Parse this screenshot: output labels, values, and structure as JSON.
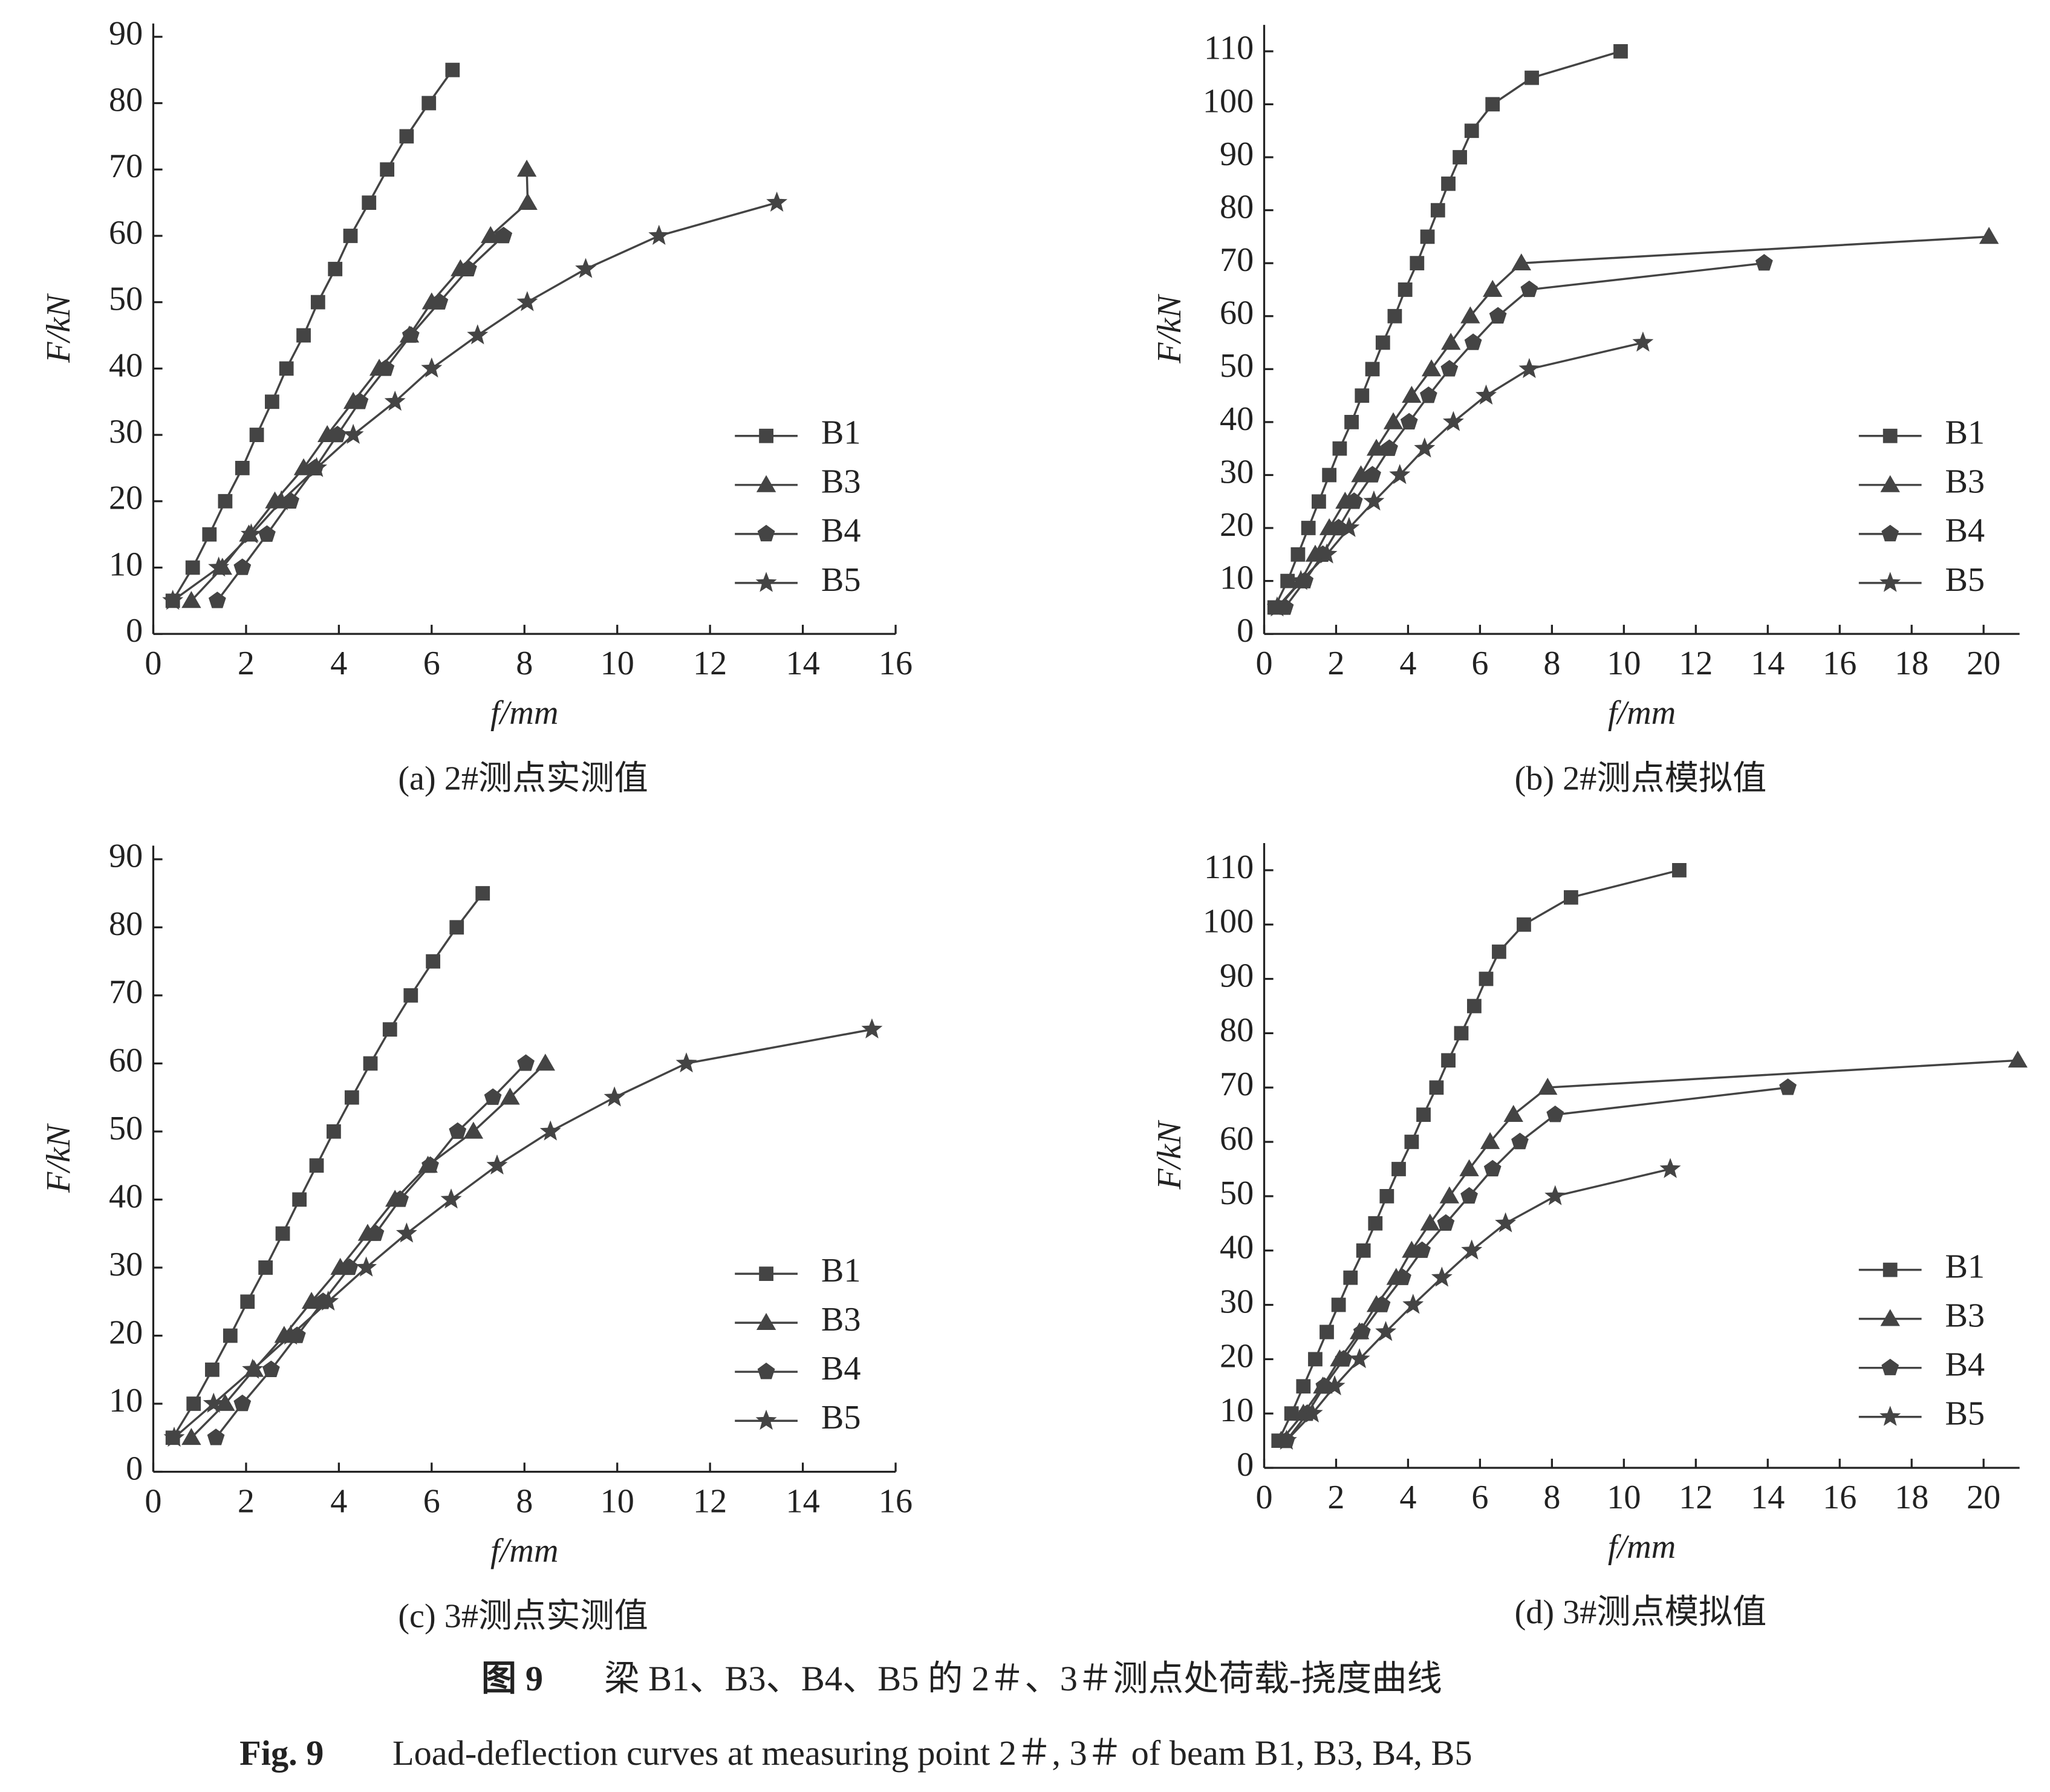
{
  "chart_data": [
    {
      "type": "line",
      "title": "(a) 2#测点实测值",
      "xlabel": "f/mm",
      "ylabel": "F/kN",
      "xlim": [
        0,
        16
      ],
      "ylim": [
        0,
        92
      ],
      "xticks": [
        0,
        2,
        4,
        6,
        8,
        10,
        12,
        14,
        16
      ],
      "yticks": [
        0,
        10,
        20,
        30,
        40,
        50,
        60,
        70,
        80,
        90
      ],
      "legend": "lower right",
      "series": [
        {
          "name": "B1",
          "marker": "square",
          "color": "#444444",
          "x": [
            0.42,
            0.85,
            1.21,
            1.55,
            1.92,
            2.23,
            2.56,
            2.87,
            3.24,
            3.55,
            3.92,
            4.25,
            4.65,
            5.04,
            5.46,
            5.94,
            6.45
          ],
          "values": [
            5,
            10,
            15,
            20,
            25,
            30,
            35,
            40,
            45,
            50,
            55,
            60,
            65,
            70,
            75,
            80,
            85
          ]
        },
        {
          "name": "B3",
          "marker": "triangle",
          "color": "#444444",
          "x": [
            0.82,
            1.49,
            2.06,
            2.62,
            3.24,
            3.75,
            4.31,
            4.87,
            5.52,
            6.0,
            6.62,
            7.27,
            8.07,
            8.05
          ],
          "values": [
            5,
            10,
            15,
            20,
            25,
            30,
            35,
            40,
            45,
            50,
            55,
            60,
            65,
            70
          ]
        },
        {
          "name": "B4",
          "marker": "pentagon",
          "color": "#444444",
          "x": [
            1.38,
            1.92,
            2.45,
            2.96,
            3.49,
            3.97,
            4.45,
            5.01,
            5.55,
            6.17,
            6.79,
            7.55
          ],
          "values": [
            5,
            10,
            15,
            20,
            25,
            30,
            35,
            40,
            45,
            50,
            55,
            60
          ]
        },
        {
          "name": "B5",
          "marker": "star",
          "color": "#444444",
          "x": [
            0.42,
            1.41,
            2.11,
            2.76,
            3.52,
            4.31,
            5.21,
            6.0,
            6.99,
            8.06,
            9.32,
            10.9,
            13.44
          ],
          "values": [
            5,
            10,
            15,
            20,
            25,
            30,
            35,
            40,
            45,
            50,
            55,
            60,
            65
          ]
        }
      ]
    },
    {
      "type": "line",
      "title": "(b) 2#测点模拟值",
      "xlabel": "f/mm",
      "ylabel": "F/kN",
      "xlim": [
        0,
        21
      ],
      "ylim": [
        0,
        115
      ],
      "xticks": [
        0,
        2,
        4,
        6,
        8,
        10,
        12,
        14,
        16,
        18,
        20
      ],
      "yticks": [
        0,
        10,
        20,
        30,
        40,
        50,
        60,
        70,
        80,
        90,
        100,
        110
      ],
      "legend": "lower right",
      "series": [
        {
          "name": "B1",
          "marker": "square",
          "color": "#444444",
          "x": [
            0.29,
            0.65,
            0.94,
            1.23,
            1.52,
            1.81,
            2.1,
            2.43,
            2.72,
            3.01,
            3.3,
            3.63,
            3.92,
            4.25,
            4.54,
            4.83,
            5.12,
            5.44,
            5.77,
            6.35,
            7.44,
            9.91
          ],
          "values": [
            5,
            10,
            15,
            20,
            25,
            30,
            35,
            40,
            45,
            50,
            55,
            60,
            65,
            70,
            75,
            80,
            85,
            90,
            95,
            100,
            105,
            110
          ]
        },
        {
          "name": "B3",
          "marker": "triangle",
          "color": "#444444",
          "x": [
            0.4,
            1.02,
            1.42,
            1.81,
            2.25,
            2.69,
            3.12,
            3.59,
            4.1,
            4.65,
            5.19,
            5.73,
            6.35,
            7.15,
            20.15
          ],
          "values": [
            5,
            10,
            15,
            20,
            25,
            30,
            35,
            40,
            45,
            50,
            55,
            60,
            65,
            70,
            75
          ]
        },
        {
          "name": "B4",
          "marker": "pentagon",
          "color": "#444444",
          "x": [
            0.58,
            1.13,
            1.63,
            2.07,
            2.5,
            3.01,
            3.48,
            4.03,
            4.57,
            5.15,
            5.81,
            6.5,
            7.37,
            13.9
          ],
          "values": [
            5,
            10,
            15,
            20,
            25,
            30,
            35,
            40,
            45,
            50,
            55,
            60,
            65,
            70
          ]
        },
        {
          "name": "B5",
          "marker": "star",
          "color": "#444444",
          "x": [
            0.36,
            1.02,
            1.74,
            2.36,
            3.05,
            3.77,
            4.46,
            5.26,
            6.17,
            7.37,
            10.53
          ],
          "values": [
            5,
            10,
            15,
            20,
            25,
            30,
            35,
            40,
            45,
            50,
            55
          ]
        }
      ]
    },
    {
      "type": "line",
      "title": "(c) 3#测点实测值",
      "xlabel": "f/mm",
      "ylabel": "F/kN",
      "xlim": [
        0,
        16
      ],
      "ylim": [
        0,
        92
      ],
      "xticks": [
        0,
        2,
        4,
        6,
        8,
        10,
        12,
        14,
        16
      ],
      "yticks": [
        0,
        10,
        20,
        30,
        40,
        50,
        60,
        70,
        80,
        90
      ],
      "legend": "lower right",
      "series": [
        {
          "name": "B1",
          "marker": "square",
          "color": "#444444",
          "x": [
            0.42,
            0.87,
            1.27,
            1.66,
            2.03,
            2.42,
            2.79,
            3.15,
            3.52,
            3.89,
            4.28,
            4.68,
            5.1,
            5.55,
            6.03,
            6.54,
            7.1
          ],
          "values": [
            5,
            10,
            15,
            20,
            25,
            30,
            35,
            40,
            45,
            50,
            55,
            60,
            65,
            70,
            75,
            80,
            85
          ]
        },
        {
          "name": "B3",
          "marker": "triangle",
          "color": "#444444",
          "x": [
            0.82,
            1.55,
            2.17,
            2.82,
            3.41,
            4.03,
            4.62,
            5.21,
            5.92,
            6.9,
            7.69,
            8.45
          ],
          "values": [
            5,
            10,
            15,
            20,
            25,
            30,
            35,
            40,
            45,
            50,
            55,
            60
          ]
        },
        {
          "name": "B4",
          "marker": "pentagon",
          "color": "#444444",
          "x": [
            1.35,
            1.92,
            2.54,
            3.1,
            3.66,
            4.23,
            4.79,
            5.32,
            5.97,
            6.56,
            7.32,
            8.03
          ],
          "values": [
            5,
            10,
            15,
            20,
            25,
            30,
            35,
            40,
            45,
            50,
            55,
            60
          ]
        },
        {
          "name": "B5",
          "marker": "star",
          "color": "#444444",
          "x": [
            0.45,
            1.3,
            2.14,
            2.96,
            3.77,
            4.59,
            5.46,
            6.42,
            7.41,
            8.56,
            9.94,
            11.49,
            15.49
          ],
          "values": [
            5,
            10,
            15,
            20,
            25,
            30,
            35,
            40,
            45,
            50,
            55,
            60,
            65
          ]
        }
      ]
    },
    {
      "type": "line",
      "title": "(d) 3#测点模拟值",
      "xlabel": "f/mm",
      "ylabel": "F/kN",
      "xlim": [
        0,
        21
      ],
      "ylim": [
        0,
        115
      ],
      "xticks": [
        0,
        2,
        4,
        6,
        8,
        10,
        12,
        14,
        16,
        18,
        20
      ],
      "yticks": [
        0,
        10,
        20,
        30,
        40,
        50,
        60,
        70,
        80,
        90,
        100,
        110
      ],
      "legend": "lower right",
      "series": [
        {
          "name": "B1",
          "marker": "square",
          "color": "#444444",
          "x": [
            0.4,
            0.76,
            1.09,
            1.42,
            1.74,
            2.07,
            2.4,
            2.76,
            3.09,
            3.41,
            3.74,
            4.1,
            4.43,
            4.79,
            5.12,
            5.48,
            5.84,
            6.17,
            6.53,
            7.22,
            8.53,
            11.54
          ],
          "values": [
            5,
            10,
            15,
            20,
            25,
            30,
            35,
            40,
            45,
            50,
            55,
            60,
            65,
            70,
            75,
            80,
            85,
            90,
            95,
            100,
            105,
            110
          ]
        },
        {
          "name": "B3",
          "marker": "triangle",
          "color": "#444444",
          "x": [
            0.47,
            1.09,
            1.63,
            2.1,
            2.65,
            3.12,
            3.67,
            4.1,
            4.61,
            5.15,
            5.7,
            6.28,
            6.93,
            7.88,
            20.95
          ],
          "values": [
            5,
            10,
            15,
            20,
            25,
            30,
            35,
            40,
            45,
            50,
            55,
            60,
            65,
            70,
            75
          ]
        },
        {
          "name": "B4",
          "marker": "pentagon",
          "color": "#444444",
          "x": [
            0.62,
            1.2,
            1.67,
            2.21,
            2.72,
            3.27,
            3.85,
            4.39,
            5.05,
            5.7,
            6.35,
            7.11,
            8.09,
            14.56
          ],
          "values": [
            5,
            10,
            15,
            20,
            25,
            30,
            35,
            40,
            45,
            50,
            55,
            60,
            65,
            70
          ]
        },
        {
          "name": "B5",
          "marker": "star",
          "color": "#444444",
          "x": [
            0.62,
            1.34,
            1.96,
            2.65,
            3.38,
            4.14,
            4.94,
            5.77,
            6.71,
            8.09,
            11.29
          ],
          "values": [
            5,
            10,
            15,
            20,
            25,
            30,
            35,
            40,
            45,
            50,
            55
          ]
        }
      ]
    }
  ],
  "figure": {
    "label_cn": "图 9",
    "title_cn": "梁 B1、B3、B4、B5 的 2＃、3＃测点处荷载-挠度曲线",
    "label_en": "Fig. 9",
    "title_en": "Load-deflection curves at measuring point 2＃, 3＃ of beam B1, B3, B4, B5"
  }
}
